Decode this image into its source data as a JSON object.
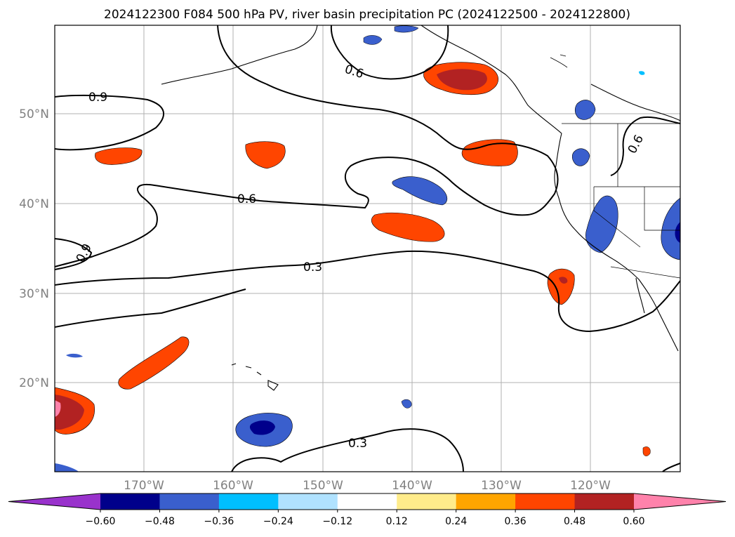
{
  "title": "2024122300 F084 500 hPa PV, river basin precipitation PC (2024122500 - 2024122800)",
  "lat_labels": [
    "50°N",
    "40°N",
    "30°N",
    "20°N"
  ],
  "lon_labels": [
    "170°W",
    "160°W",
    "150°W",
    "140°W",
    "130°W",
    "120°W"
  ],
  "contour_labels": [
    "0.9",
    "0.6",
    "0.6",
    "0.9",
    "0.3",
    "0.3",
    "0.6"
  ],
  "colorbar": {
    "colors": [
      "#9932cc",
      "#00008b",
      "#3a5fcd",
      "#00bfff",
      "#b0e2ff",
      "#ffffff",
      "#ffec8b",
      "#ffa500",
      "#ff4500",
      "#b22222",
      "#ff82ab"
    ],
    "ticks": [
      "−0.60",
      "−0.48",
      "−0.36",
      "−0.24",
      "−0.12",
      "0.12",
      "0.24",
      "0.36",
      "0.48",
      "0.60"
    ]
  }
}
